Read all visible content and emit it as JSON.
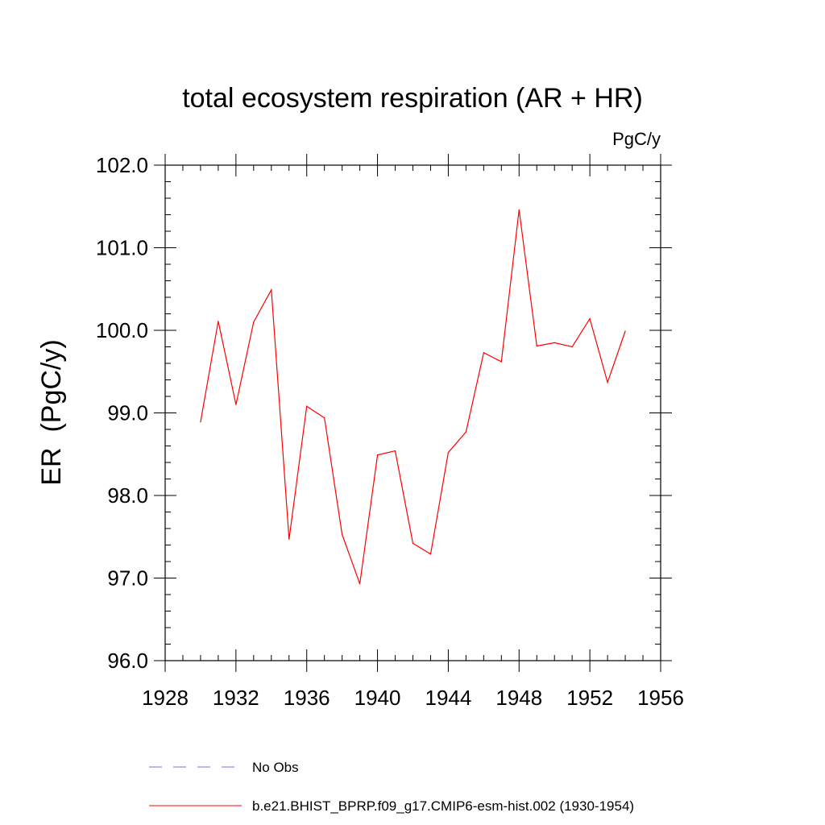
{
  "chart_data": {
    "type": "line",
    "title": "total ecosystem respiration (AR + HR)",
    "units": "PgC/y",
    "ylabel": "ER  (PgC/y)",
    "xlabel": "",
    "xlim": [
      1928,
      1956
    ],
    "ylim": [
      96.0,
      102.0
    ],
    "x_ticks": [
      1928,
      1932,
      1936,
      1940,
      1944,
      1948,
      1952,
      1956
    ],
    "y_ticks": [
      "96.0",
      "97.0",
      "98.0",
      "99.0",
      "100.0",
      "101.0",
      "102.0"
    ],
    "grid": false,
    "series": [
      {
        "name": "b.e21.BHIST_BPRP.f09_g17.CMIP6-esm-hist.002 (1930-1954)",
        "color": "#ff0000",
        "style": "solid",
        "x": [
          1930,
          1931,
          1932,
          1933,
          1934,
          1935,
          1936,
          1937,
          1938,
          1939,
          1940,
          1941,
          1942,
          1943,
          1944,
          1945,
          1946,
          1947,
          1948,
          1949,
          1950,
          1951,
          1952,
          1953,
          1954
        ],
        "values": [
          98.89,
          100.11,
          99.1,
          100.1,
          100.49,
          97.47,
          99.08,
          98.94,
          97.53,
          96.93,
          98.49,
          98.54,
          97.42,
          97.29,
          98.52,
          98.77,
          99.73,
          99.62,
          101.46,
          99.81,
          99.85,
          99.8,
          100.14,
          99.37,
          99.99
        ]
      }
    ],
    "legend": [
      {
        "label": "No Obs",
        "color": "#7b68ee",
        "style": "dashed"
      },
      {
        "label": "b.e21.BHIST_BPRP.f09_g17.CMIP6-esm-hist.002 (1930-1954)",
        "color": "#ff0000",
        "style": "solid"
      }
    ]
  }
}
